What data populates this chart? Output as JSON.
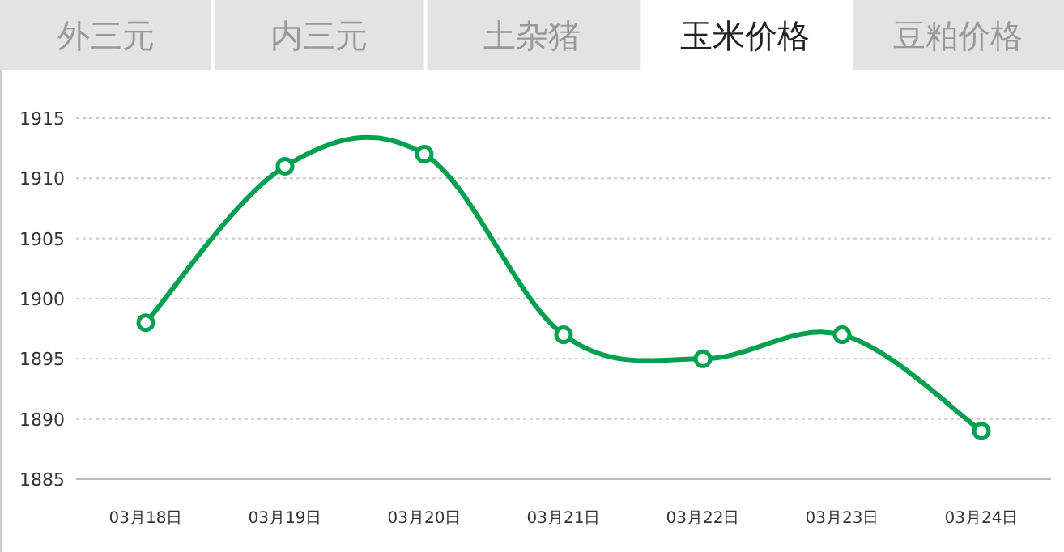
{
  "chart_data": {
    "type": "line",
    "title": "玉米价格",
    "annotations": [
      "外三元",
      "内三元",
      "土杂猪",
      "豆粕价格"
    ],
    "categories": [
      "03月18日",
      "03月19日",
      "03月20日",
      "03月21日",
      "03月22日",
      "03月23日",
      "03月24日"
    ],
    "series": [
      {
        "color": "#00a050",
        "values": [
          1898,
          1911,
          1912,
          1897,
          1895,
          1897,
          1889
        ]
      }
    ],
    "ylim": [
      1885,
      1915
    ],
    "yticks": [
      1885,
      1890,
      1895,
      1900,
      1905,
      1910,
      1915
    ],
    "grid": "y",
    "marker": "circle",
    "line_style": "solid"
  }
}
